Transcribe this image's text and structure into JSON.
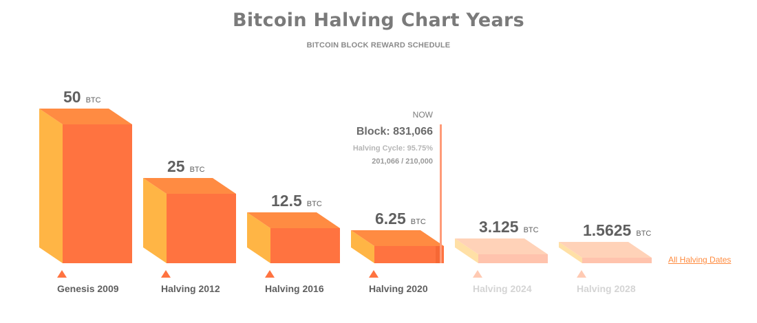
{
  "header": {
    "title": "Bitcoin Halving Chart Years",
    "subtitle": "BITCOIN BLOCK REWARD SCHEDULE"
  },
  "now_panel": {
    "label": "NOW",
    "block": "Block: 831,066",
    "cycle": "Halving Cycle: 95.75%",
    "progress_text": "201,066 / 210,000",
    "progress": 0.9575
  },
  "link_text": "All Halving Dates",
  "colors": {
    "front": "#ff7340",
    "top": "#ff8b42",
    "side": "#ffb545",
    "front_future": "#ffc3ad",
    "top_future": "#ffd2b8",
    "side_future": "#ffe0a6",
    "label_text": "#5f5f5f",
    "future_label_text": "#d4d4d4",
    "marker": "#ff7340",
    "marker_future": "#ffcab3",
    "now_line": "#ff9b78",
    "link": "#ff8a3d"
  },
  "chart_data": {
    "type": "bar",
    "title": "Bitcoin Halving Chart Years",
    "subtitle": "BITCOIN BLOCK REWARD SCHEDULE",
    "unit": "BTC",
    "categories": [
      "Genesis 2009",
      "Halving 2012",
      "Halving 2016",
      "Halving 2020",
      "Halving 2024",
      "Halving 2028"
    ],
    "values": [
      50,
      25,
      12.5,
      6.25,
      3.125,
      1.5625
    ],
    "value_labels": [
      "50",
      "25",
      "12.5",
      "6.25",
      "3.125",
      "1.5625"
    ],
    "future": [
      false,
      false,
      false,
      false,
      true,
      true
    ]
  }
}
